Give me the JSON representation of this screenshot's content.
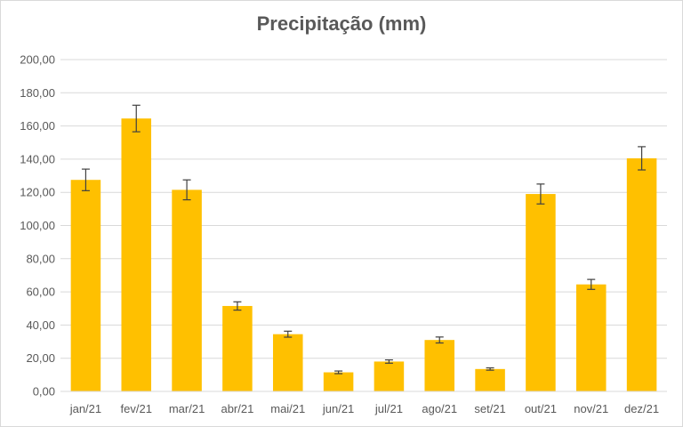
{
  "chart_data": {
    "type": "bar",
    "title": "Precipitação (mm)",
    "xlabel": "",
    "ylabel": "",
    "ylim": [
      0,
      200
    ],
    "y_ticks": [
      "0,00",
      "20,00",
      "40,00",
      "60,00",
      "80,00",
      "100,00",
      "120,00",
      "140,00",
      "160,00",
      "180,00",
      "200,00"
    ],
    "categories": [
      "jan/21",
      "fev/21",
      "mar/21",
      "abr/21",
      "mai/21",
      "jun/21",
      "jul/21",
      "ago/21",
      "set/21",
      "out/21",
      "nov/21",
      "dez/21"
    ],
    "values": [
      127.5,
      164.5,
      121.5,
      51.5,
      34.5,
      11.5,
      18.0,
      31.0,
      13.5,
      119.0,
      64.5,
      140.5
    ],
    "errors": [
      6.5,
      8.0,
      6.0,
      2.5,
      1.8,
      0.8,
      1.0,
      1.8,
      0.7,
      6.0,
      3.0,
      7.0
    ],
    "grid": true,
    "legend": "none",
    "bar_color": "#ffc000",
    "error_bar_color": "#404040",
    "grid_color": "#d9d9d9"
  }
}
